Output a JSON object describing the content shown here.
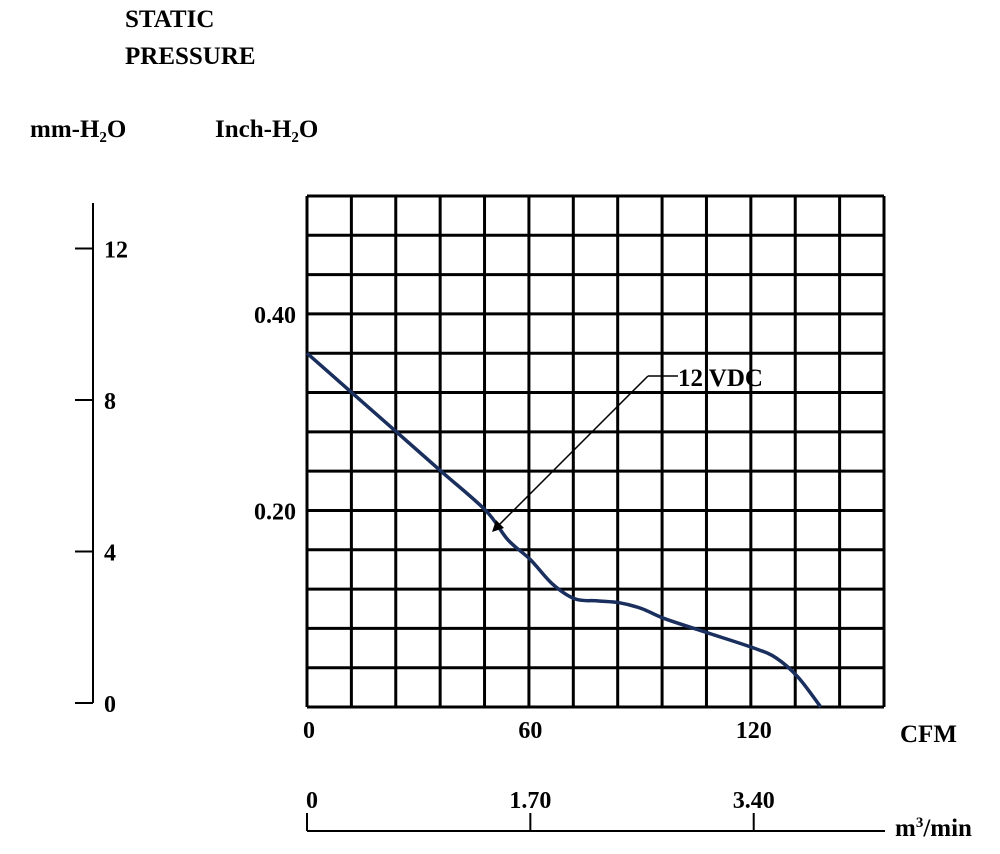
{
  "header": {
    "title_line1": "STATIC",
    "title_line2": "PRESSURE"
  },
  "units": {
    "mm": "mm-H₂O",
    "inch": "Inch-H₂O",
    "cfm": "CFM",
    "m3min_base": "m",
    "m3min_sup": "3",
    "m3min_rest": "/min"
  },
  "chart_data": {
    "type": "line",
    "title": "STATIC PRESSURE",
    "grid": true,
    "x_cfm": {
      "label": "CFM",
      "range": [
        0,
        155
      ],
      "ticks": [
        0,
        60,
        120
      ]
    },
    "x_m3min": {
      "label": "m³/min",
      "ticks": [
        "0",
        "1.70",
        "3.40"
      ],
      "tick_cfm_positions": [
        0,
        60,
        120
      ]
    },
    "y_inch": {
      "label": "Inch-H₂O",
      "range": [
        0,
        0.52
      ],
      "ticks": [
        "0.40",
        "0.20"
      ],
      "tick_values": [
        0.4,
        0.2
      ]
    },
    "y_mm": {
      "label": "mm-H₂O",
      "range": [
        0,
        13.2
      ],
      "ticks": [
        "12",
        "8",
        "4",
        "0"
      ],
      "tick_values": [
        12,
        8,
        4,
        0
      ]
    },
    "series": [
      {
        "name": "12 VDC",
        "color": "#1a2f5e",
        "points": [
          [
            0,
            0.36
          ],
          [
            12,
            0.32
          ],
          [
            24,
            0.28
          ],
          [
            36,
            0.24
          ],
          [
            48,
            0.2
          ],
          [
            54,
            0.17
          ],
          [
            60,
            0.15
          ],
          [
            66,
            0.125
          ],
          [
            72,
            0.11
          ],
          [
            78,
            0.108
          ],
          [
            84,
            0.106
          ],
          [
            90,
            0.1
          ],
          [
            96,
            0.09
          ],
          [
            108,
            0.075
          ],
          [
            120,
            0.06
          ],
          [
            126,
            0.05
          ],
          [
            132,
            0.03
          ],
          [
            138,
            0.0
          ]
        ]
      }
    ],
    "annotation": {
      "text": "12 VDC",
      "points_to_cfm": 54
    }
  }
}
